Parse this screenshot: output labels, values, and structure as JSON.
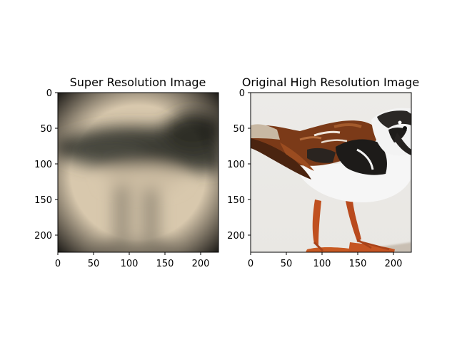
{
  "panels": [
    {
      "title": "Super Resolution Image",
      "x_ticks": [
        "0",
        "50",
        "100",
        "150",
        "200"
      ],
      "y_ticks": [
        "0",
        "50",
        "100",
        "150",
        "200"
      ],
      "x_range": [
        0,
        224
      ],
      "y_range": [
        0,
        224
      ],
      "image_subject": "blurred bird"
    },
    {
      "title": "Original High Resolution Image",
      "x_ticks": [
        "0",
        "50",
        "100",
        "150",
        "200"
      ],
      "y_ticks": [
        "0",
        "50",
        "100",
        "150",
        "200"
      ],
      "x_range": [
        0,
        224
      ],
      "y_range": [
        0,
        224
      ],
      "image_subject": "ruddy turnstone bird"
    }
  ],
  "colors": {
    "sr_background": "#d9c9ae",
    "sr_dark": "#3e3d36",
    "hr_background": "#ebe9e6",
    "bird_dark": "#1c1a18",
    "bird_brown": "#7a3a18",
    "bird_white": "#f8f8f8",
    "legs": "#c5501d"
  }
}
